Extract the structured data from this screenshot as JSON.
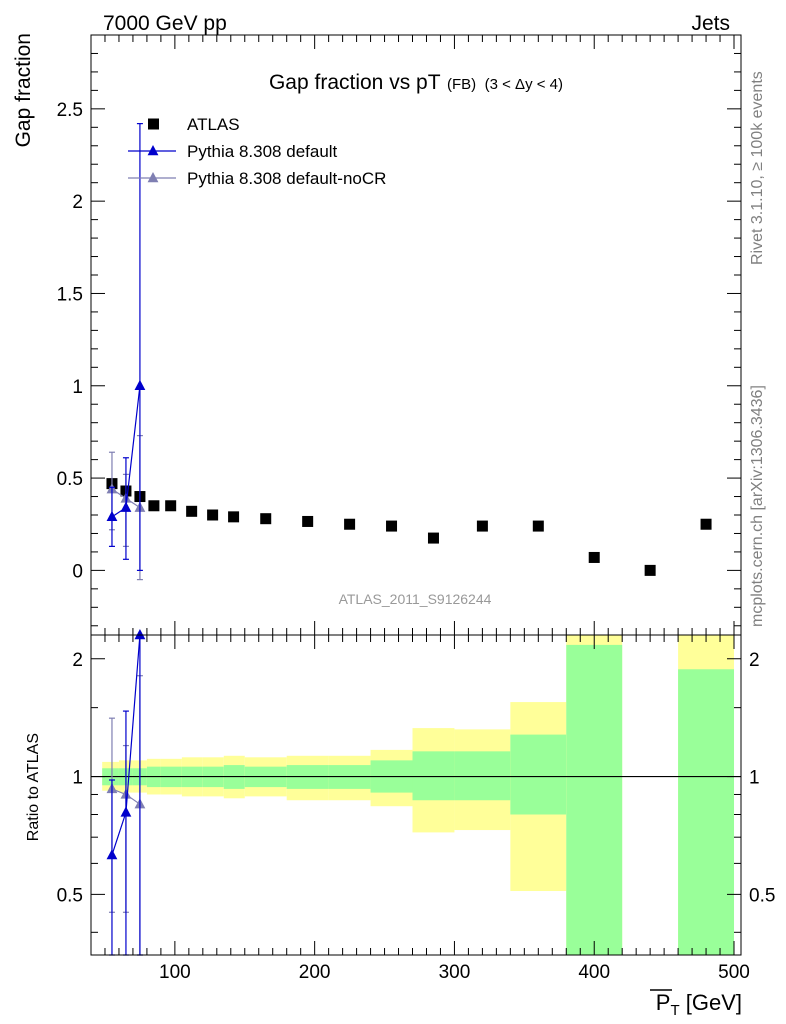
{
  "header": {
    "left": "7000 GeV pp",
    "right": "Jets"
  },
  "plot_title": {
    "main": "Gap fraction vs pT",
    "sub": "(FB)",
    "range": "(3 < Δy < 4)"
  },
  "side_labels": {
    "rivet": "Rivet 3.1.10, ≥ 100k events",
    "mcplots": "mcplots.cern.ch [arXiv:1306.3436]"
  },
  "watermark": "ATLAS_2011_S9126244",
  "colors": {
    "data": "#000000",
    "default": "#0000cc",
    "nocr": "#7f7fb2",
    "band_inner": "#99ff99",
    "band_outer": "#ffff99"
  },
  "chart_data": [
    {
      "type": "scatter",
      "panel": "main",
      "ylabel": "Gap fraction",
      "ylim": [
        -0.35,
        2.9
      ],
      "yticks": [
        0,
        0.5,
        1,
        1.5,
        2,
        2.5
      ],
      "ytick_labels": [
        "0",
        "0.5",
        "1",
        "1.5",
        "2",
        "2.5"
      ],
      "legend_position": "top-left",
      "series": [
        {
          "name": "ATLAS",
          "marker": "square",
          "x": [
            55,
            65,
            75,
            85,
            97,
            112,
            127,
            142,
            165,
            195,
            225,
            255,
            285,
            320,
            360,
            400,
            440,
            480
          ],
          "y": [
            0.47,
            0.43,
            0.4,
            0.35,
            0.35,
            0.32,
            0.3,
            0.29,
            0.28,
            0.265,
            0.25,
            0.24,
            0.175,
            0.24,
            0.24,
            0.07,
            0.0,
            0.25
          ]
        },
        {
          "name": "Pythia 8.308 default",
          "marker": "triangle",
          "x": [
            55,
            65,
            75
          ],
          "y": [
            0.29,
            0.34,
            1.0
          ],
          "yerr_low": [
            0.16,
            0.28,
            1.0
          ],
          "yerr_high": [
            0.16,
            0.27,
            1.42
          ]
        },
        {
          "name": "Pythia 8.308 default-noCR",
          "marker": "triangle",
          "x": [
            55,
            65,
            75
          ],
          "y": [
            0.44,
            0.39,
            0.34
          ],
          "yerr_low": [
            0.22,
            0.26,
            0.39
          ],
          "yerr_high": [
            0.2,
            0.13,
            0.39
          ]
        }
      ]
    },
    {
      "type": "bar",
      "panel": "ratio",
      "ylabel": "Ratio to ATLAS",
      "xlabel": "P_T [GeV]",
      "xlim": [
        40,
        505
      ],
      "ylim": [
        0.35,
        2.3
      ],
      "xticks": [
        100,
        200,
        300,
        400,
        500
      ],
      "xtick_labels": [
        "100",
        "200",
        "300",
        "400",
        "500"
      ],
      "yticks": [
        0.5,
        1,
        2
      ],
      "ytick_labels": [
        "0.5",
        "1",
        "2"
      ],
      "reference": 1.0,
      "bins": [
        {
          "lo": 48,
          "hi": 60,
          "inner": [
            0.95,
            1.05
          ],
          "outer": [
            0.92,
            1.09
          ]
        },
        {
          "lo": 60,
          "hi": 70,
          "inner": [
            0.95,
            1.05
          ],
          "outer": [
            0.91,
            1.1
          ]
        },
        {
          "lo": 70,
          "hi": 80,
          "inner": [
            0.95,
            1.05
          ],
          "outer": [
            0.91,
            1.1
          ]
        },
        {
          "lo": 80,
          "hi": 90,
          "inner": [
            0.94,
            1.06
          ],
          "outer": [
            0.9,
            1.11
          ]
        },
        {
          "lo": 90,
          "hi": 105,
          "inner": [
            0.94,
            1.06
          ],
          "outer": [
            0.9,
            1.11
          ]
        },
        {
          "lo": 105,
          "hi": 120,
          "inner": [
            0.94,
            1.06
          ],
          "outer": [
            0.89,
            1.12
          ]
        },
        {
          "lo": 120,
          "hi": 135,
          "inner": [
            0.94,
            1.06
          ],
          "outer": [
            0.89,
            1.12
          ]
        },
        {
          "lo": 135,
          "hi": 150,
          "inner": [
            0.93,
            1.07
          ],
          "outer": [
            0.88,
            1.13
          ]
        },
        {
          "lo": 150,
          "hi": 180,
          "inner": [
            0.94,
            1.06
          ],
          "outer": [
            0.89,
            1.12
          ]
        },
        {
          "lo": 180,
          "hi": 210,
          "inner": [
            0.93,
            1.07
          ],
          "outer": [
            0.87,
            1.13
          ]
        },
        {
          "lo": 210,
          "hi": 240,
          "inner": [
            0.93,
            1.07
          ],
          "outer": [
            0.87,
            1.13
          ]
        },
        {
          "lo": 240,
          "hi": 270,
          "inner": [
            0.91,
            1.1
          ],
          "outer": [
            0.84,
            1.17
          ]
        },
        {
          "lo": 270,
          "hi": 300,
          "inner": [
            0.87,
            1.16
          ],
          "outer": [
            0.72,
            1.33
          ]
        },
        {
          "lo": 300,
          "hi": 340,
          "inner": [
            0.87,
            1.16
          ],
          "outer": [
            0.73,
            1.32
          ]
        },
        {
          "lo": 340,
          "hi": 380,
          "inner": [
            0.8,
            1.28
          ],
          "outer": [
            0.51,
            1.55
          ]
        },
        {
          "lo": 380,
          "hi": 420,
          "inner": [
            0.35,
            2.17
          ],
          "outer": [
            0.35,
            2.3
          ]
        },
        {
          "lo": 460,
          "hi": 500,
          "inner": [
            0.35,
            1.88
          ],
          "outer": [
            0.35,
            2.3
          ]
        }
      ],
      "series": [
        {
          "name": "Pythia 8.308 default",
          "x": [
            55,
            65,
            75
          ],
          "y": [
            0.63,
            0.81,
            2.3
          ],
          "yerr_low": [
            0.28,
            0.46,
            1.95
          ],
          "yerr_high": [
            0.35,
            0.66,
            0.0
          ]
        },
        {
          "name": "Pythia 8.308 default-noCR",
          "x": [
            55,
            65,
            75
          ],
          "y": [
            0.93,
            0.9,
            0.85
          ],
          "yerr_low": [
            0.48,
            0.45,
            0.5
          ],
          "yerr_high": [
            0.48,
            0.3,
            0.96
          ]
        }
      ]
    }
  ]
}
